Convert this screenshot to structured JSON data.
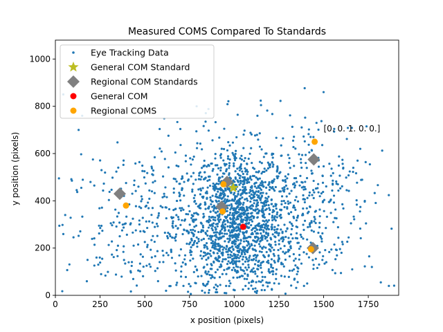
{
  "chart_data": {
    "type": "scatter",
    "title": "Measured COMS Compared To Standards",
    "xlabel": "x position (pixels)",
    "ylabel": "y position (pixels)",
    "xlim": [
      0,
      1920
    ],
    "ylim": [
      0,
      1080
    ],
    "xticks": [
      0,
      250,
      500,
      750,
      1000,
      1250,
      1500,
      1750
    ],
    "yticks": [
      0,
      200,
      400,
      600,
      800,
      1000
    ],
    "grid": false,
    "legend_position": "upper-left",
    "annotation": {
      "text": "[0. 0. 1. 0. 0.]",
      "x": 1500,
      "y": 705
    },
    "colors": {
      "eye_tracking": "#1f77b4",
      "general_standard": "#bcbd22",
      "regional_standard": "#808080",
      "general_com": "#ff0000",
      "regional_coms": "#ffa500"
    },
    "series": [
      {
        "name": "Eye Tracking Data",
        "marker": "point",
        "points": [
          [
            1500,
            860
          ],
          [
            150,
            760
          ],
          [
            130,
            700
          ],
          [
            210,
            575
          ],
          [
            790,
            800
          ],
          [
            840,
            735
          ],
          [
            1150,
            805
          ],
          [
            1130,
            760
          ],
          [
            20,
            495
          ],
          [
            55,
            340
          ],
          [
            145,
            455
          ],
          [
            1820,
            55
          ],
          [
            1865,
            40
          ],
          [
            1755,
            165
          ],
          [
            1770,
            120
          ],
          [
            600,
            415
          ],
          [
            540,
            440
          ],
          [
            1740,
            715
          ],
          [
            1705,
            620
          ],
          [
            1690,
            570
          ],
          [
            450,
            275
          ],
          [
            470,
            300
          ],
          [
            350,
            210
          ],
          [
            360,
            250
          ],
          [
            310,
            305
          ],
          [
            230,
            160
          ],
          [
            240,
            130
          ],
          [
            180,
            150
          ],
          [
            410,
            140
          ],
          [
            1560,
            215
          ],
          [
            1600,
            180
          ],
          [
            1640,
            245
          ],
          [
            1610,
            540
          ],
          [
            1580,
            470
          ],
          [
            1530,
            395
          ],
          [
            1660,
            110
          ],
          [
            1555,
            310
          ],
          [
            1400,
            560
          ],
          [
            1350,
            480
          ],
          [
            1420,
            605
          ]
        ],
        "cloud": {
          "count": 2200,
          "clusters": [
            {
              "cx": 1020,
              "cy": 330,
              "sx": 120,
              "sy": 150,
              "w": 0.38
            },
            {
              "cx": 950,
              "cy": 300,
              "sx": 230,
              "sy": 180,
              "w": 0.28
            },
            {
              "cx": 1150,
              "cy": 260,
              "sx": 160,
              "sy": 160,
              "w": 0.14
            },
            {
              "cx": 1470,
              "cy": 430,
              "sx": 150,
              "sy": 180,
              "w": 0.1
            },
            {
              "cx": 480,
              "cy": 280,
              "sx": 220,
              "sy": 160,
              "w": 0.1
            }
          ]
        }
      },
      {
        "name": "General COM Standard",
        "marker": "star",
        "points": [
          [
            995,
            455
          ]
        ]
      },
      {
        "name": "Regional COM Standards",
        "marker": "diamond",
        "points": [
          [
            960,
            480
          ],
          [
            930,
            375
          ],
          [
            360,
            430
          ],
          [
            1445,
            575
          ],
          [
            1440,
            200
          ]
        ]
      },
      {
        "name": "General COM",
        "marker": "circle",
        "points": [
          [
            1050,
            290
          ]
        ]
      },
      {
        "name": "Regional COMS",
        "marker": "circle",
        "points": [
          [
            940,
            470
          ],
          [
            935,
            355
          ],
          [
            395,
            380
          ],
          [
            1450,
            650
          ],
          [
            1430,
            195
          ]
        ]
      }
    ]
  }
}
